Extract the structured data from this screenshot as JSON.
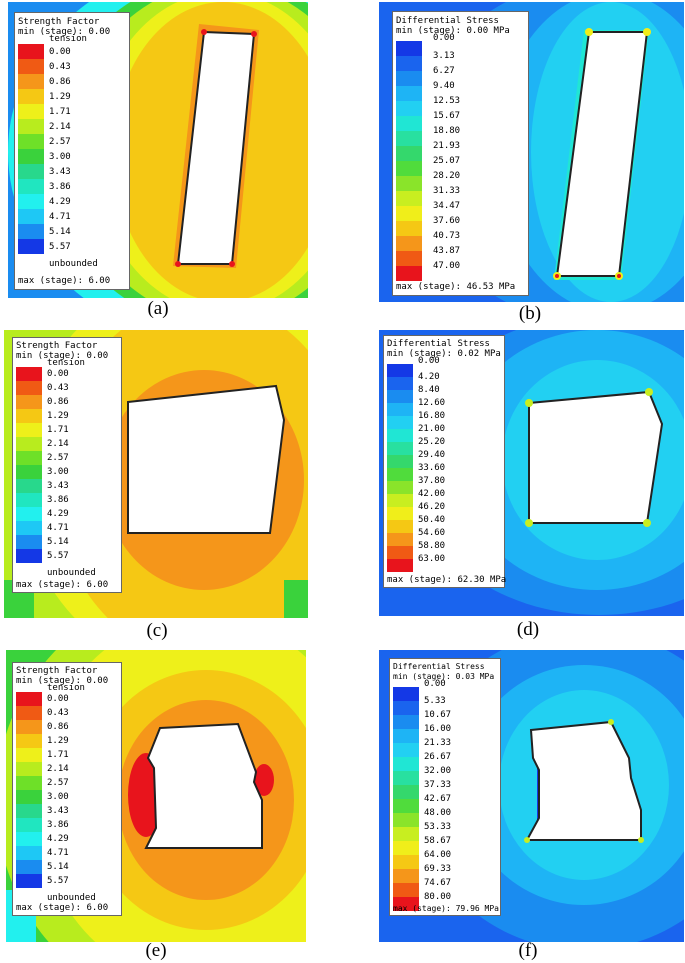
{
  "panels": [
    {
      "id": "a",
      "caption": "(a)",
      "legend": {
        "title": "Strength Factor",
        "min_line": "min (stage): 0.00",
        "top_label": "tension",
        "labels": [
          "0.00",
          "0.43",
          "0.86",
          "1.29",
          "1.71",
          "2.14",
          "2.57",
          "3.00",
          "3.43",
          "3.86",
          "4.29",
          "4.71",
          "5.14",
          "5.57"
        ],
        "bottom_label": "unbounded",
        "max_line": "max (stage): 6.00",
        "colors": [
          "#e8141c",
          "#f05a14",
          "#f5961a",
          "#f5c814",
          "#eef01a",
          "#b8ec1e",
          "#6ee028",
          "#3ad23c",
          "#28d88c",
          "#20e6c0",
          "#22f0ee",
          "#1ec8f5",
          "#1a8cf0",
          "#1438e6"
        ]
      },
      "background": "#f5c012"
    },
    {
      "id": "b",
      "caption": "(b)",
      "legend": {
        "title": "Differential Stress",
        "min_line": "min (stage): 0.00 MPa",
        "top_label": "0.00",
        "labels": [
          "3.13",
          "6.27",
          "9.40",
          "12.53",
          "15.67",
          "18.80",
          "21.93",
          "25.07",
          "28.20",
          "31.33",
          "34.47",
          "37.60",
          "40.73",
          "43.87",
          "47.00"
        ],
        "max_line": "max (stage): 46.53 MPa",
        "colors": [
          "#1438e6",
          "#1a64ee",
          "#1a8cf0",
          "#1eb4f5",
          "#22d0f2",
          "#20e6d4",
          "#28e0a0",
          "#34d86c",
          "#50dc3c",
          "#8ae42a",
          "#c8ee20",
          "#f0ee1a",
          "#f5c814",
          "#f5961a",
          "#f05a14",
          "#e8141c"
        ]
      },
      "background": "#1ea0f0"
    },
    {
      "id": "c",
      "caption": "(c)",
      "legend": {
        "title": "Strength Factor",
        "min_line": "min (stage): 0.00",
        "top_label": "tension",
        "labels": [
          "0.00",
          "0.43",
          "0.86",
          "1.29",
          "1.71",
          "2.14",
          "2.57",
          "3.00",
          "3.43",
          "3.86",
          "4.29",
          "4.71",
          "5.14",
          "5.57"
        ],
        "bottom_label": "unbounded",
        "max_line": "max (stage): 6.00",
        "colors": [
          "#e8141c",
          "#f05a14",
          "#f5961a",
          "#f5c814",
          "#eef01a",
          "#b8ec1e",
          "#6ee028",
          "#3ad23c",
          "#28d88c",
          "#20e6c0",
          "#22f0ee",
          "#1ec8f5",
          "#1a8cf0",
          "#1438e6"
        ]
      },
      "background": "#f5c012"
    },
    {
      "id": "d",
      "caption": "(d)",
      "legend": {
        "title": "Differential Stress",
        "min_line": "min (stage): 0.02 MPa",
        "top_label": "0.00",
        "labels": [
          "4.20",
          "8.40",
          "12.60",
          "16.80",
          "21.00",
          "25.20",
          "29.40",
          "33.60",
          "37.80",
          "42.00",
          "46.20",
          "50.40",
          "54.60",
          "58.80",
          "63.00"
        ],
        "max_line": "max (stage): 62.30 MPa",
        "colors": [
          "#1438e6",
          "#1a64ee",
          "#1a8cf0",
          "#1eb4f5",
          "#22d0f2",
          "#20e6d4",
          "#28e0a0",
          "#34d86c",
          "#50dc3c",
          "#8ae42a",
          "#c8ee20",
          "#f0ee1a",
          "#f5c814",
          "#f5961a",
          "#f05a14",
          "#e8141c"
        ]
      },
      "background": "#1ea0f0"
    },
    {
      "id": "e",
      "caption": "(e)",
      "legend": {
        "title": "Strength Factor",
        "min_line": "min (stage): 0.00",
        "top_label": "tension",
        "labels": [
          "0.00",
          "0.43",
          "0.86",
          "1.29",
          "1.71",
          "2.14",
          "2.57",
          "3.00",
          "3.43",
          "3.86",
          "4.29",
          "4.71",
          "5.14",
          "5.57"
        ],
        "bottom_label": "unbounded",
        "max_line": "max (stage): 6.00",
        "colors": [
          "#e8141c",
          "#f05a14",
          "#f5961a",
          "#f5c814",
          "#eef01a",
          "#b8ec1e",
          "#6ee028",
          "#3ad23c",
          "#28d88c",
          "#20e6c0",
          "#22f0ee",
          "#1ec8f5",
          "#1a8cf0",
          "#1438e6"
        ]
      },
      "background": "#f5c012"
    },
    {
      "id": "f",
      "caption": "(f)",
      "legend": {
        "title": "Differential Stress",
        "min_line": "min (stage): 0.03 MPa",
        "top_label": "0.00",
        "labels": [
          "5.33",
          "10.67",
          "16.00",
          "21.33",
          "26.67",
          "32.00",
          "37.33",
          "42.67",
          "48.00",
          "53.33",
          "58.67",
          "64.00",
          "69.33",
          "74.67",
          "80.00"
        ],
        "max_line": "max (stage): 79.96 MPa",
        "colors": [
          "#1438e6",
          "#1a64ee",
          "#1a8cf0",
          "#1eb4f5",
          "#22d0f2",
          "#20e6d4",
          "#28e0a0",
          "#34d86c",
          "#50dc3c",
          "#8ae42a",
          "#c8ee20",
          "#f0ee1a",
          "#f5c814",
          "#f5961a",
          "#f05a14",
          "#e8141c"
        ]
      },
      "background": "#1ea0f0"
    }
  ]
}
